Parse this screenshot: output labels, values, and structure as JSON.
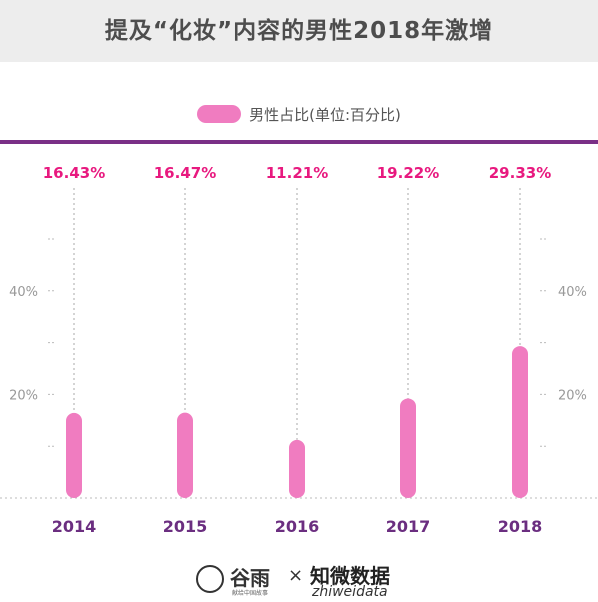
{
  "title": "提及“化妆”内容的男性2018年激增",
  "footer": {
    "brand1": "谷雨",
    "brand1_sub": "献给中国故事",
    "times": "×",
    "brand2": "知微数据",
    "brand2_sub": "zhiweidata"
  },
  "colors": {
    "bar": "#f07cc0",
    "value_label": "#e8197f",
    "year_label": "#6b2e80",
    "divider": "#7a2f86"
  },
  "chart_data": {
    "type": "bar",
    "categories": [
      "2014",
      "2015",
      "2016",
      "2017",
      "2018"
    ],
    "series": [
      {
        "name": "男性占比(单位:百分比)",
        "values": [
          16.43,
          16.47,
          11.21,
          19.22,
          29.33
        ]
      }
    ],
    "value_labels": [
      "16.43%",
      "16.47%",
      "11.21%",
      "19.22%",
      "29.33%"
    ],
    "yticks": [
      "20%",
      "40%"
    ],
    "ylim": [
      0,
      60
    ],
    "grid": false,
    "legend_position": "top"
  }
}
